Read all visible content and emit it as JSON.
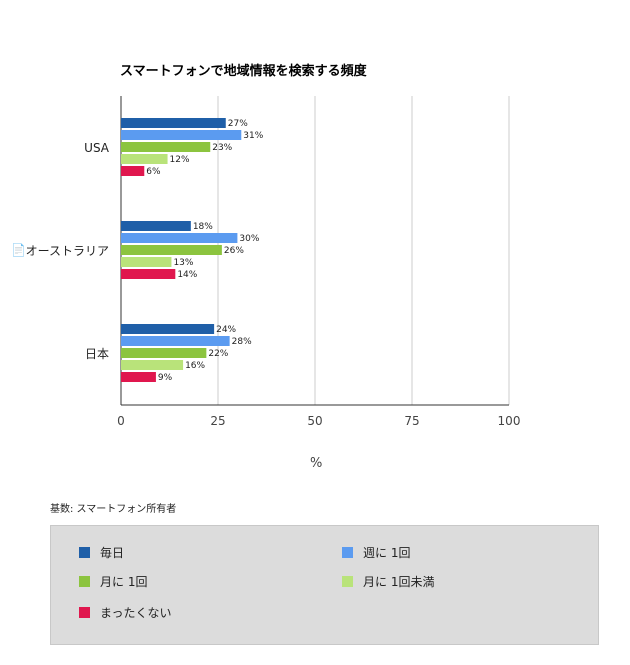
{
  "chart_data": {
    "type": "bar",
    "orientation": "horizontal",
    "title": "スマートフォンで地域情報を検索する頻度",
    "categories": [
      "USA",
      "オーストラリア",
      "日本"
    ],
    "series": [
      {
        "name": "毎日",
        "color": "#1f5fa8",
        "values": [
          27,
          18,
          24
        ]
      },
      {
        "name": "週に 1回",
        "color": "#5b9bf0",
        "values": [
          31,
          30,
          28
        ]
      },
      {
        "name": "月に 1回",
        "color": "#8cc43f",
        "values": [
          23,
          26,
          22
        ]
      },
      {
        "name": "月に 1回未満",
        "color": "#b9e37a",
        "values": [
          12,
          13,
          16
        ]
      },
      {
        "name": "まったくない",
        "color": "#e0174e",
        "values": [
          6,
          14,
          9
        ]
      }
    ],
    "xlim": [
      0,
      100
    ],
    "xticks": [
      "0",
      "25",
      "50",
      "75",
      "100"
    ],
    "xlabel": "%",
    "grid": true,
    "legend_position": "bottom",
    "note": "基数: スマートフォン所有者"
  },
  "side_icon": "document-icon"
}
